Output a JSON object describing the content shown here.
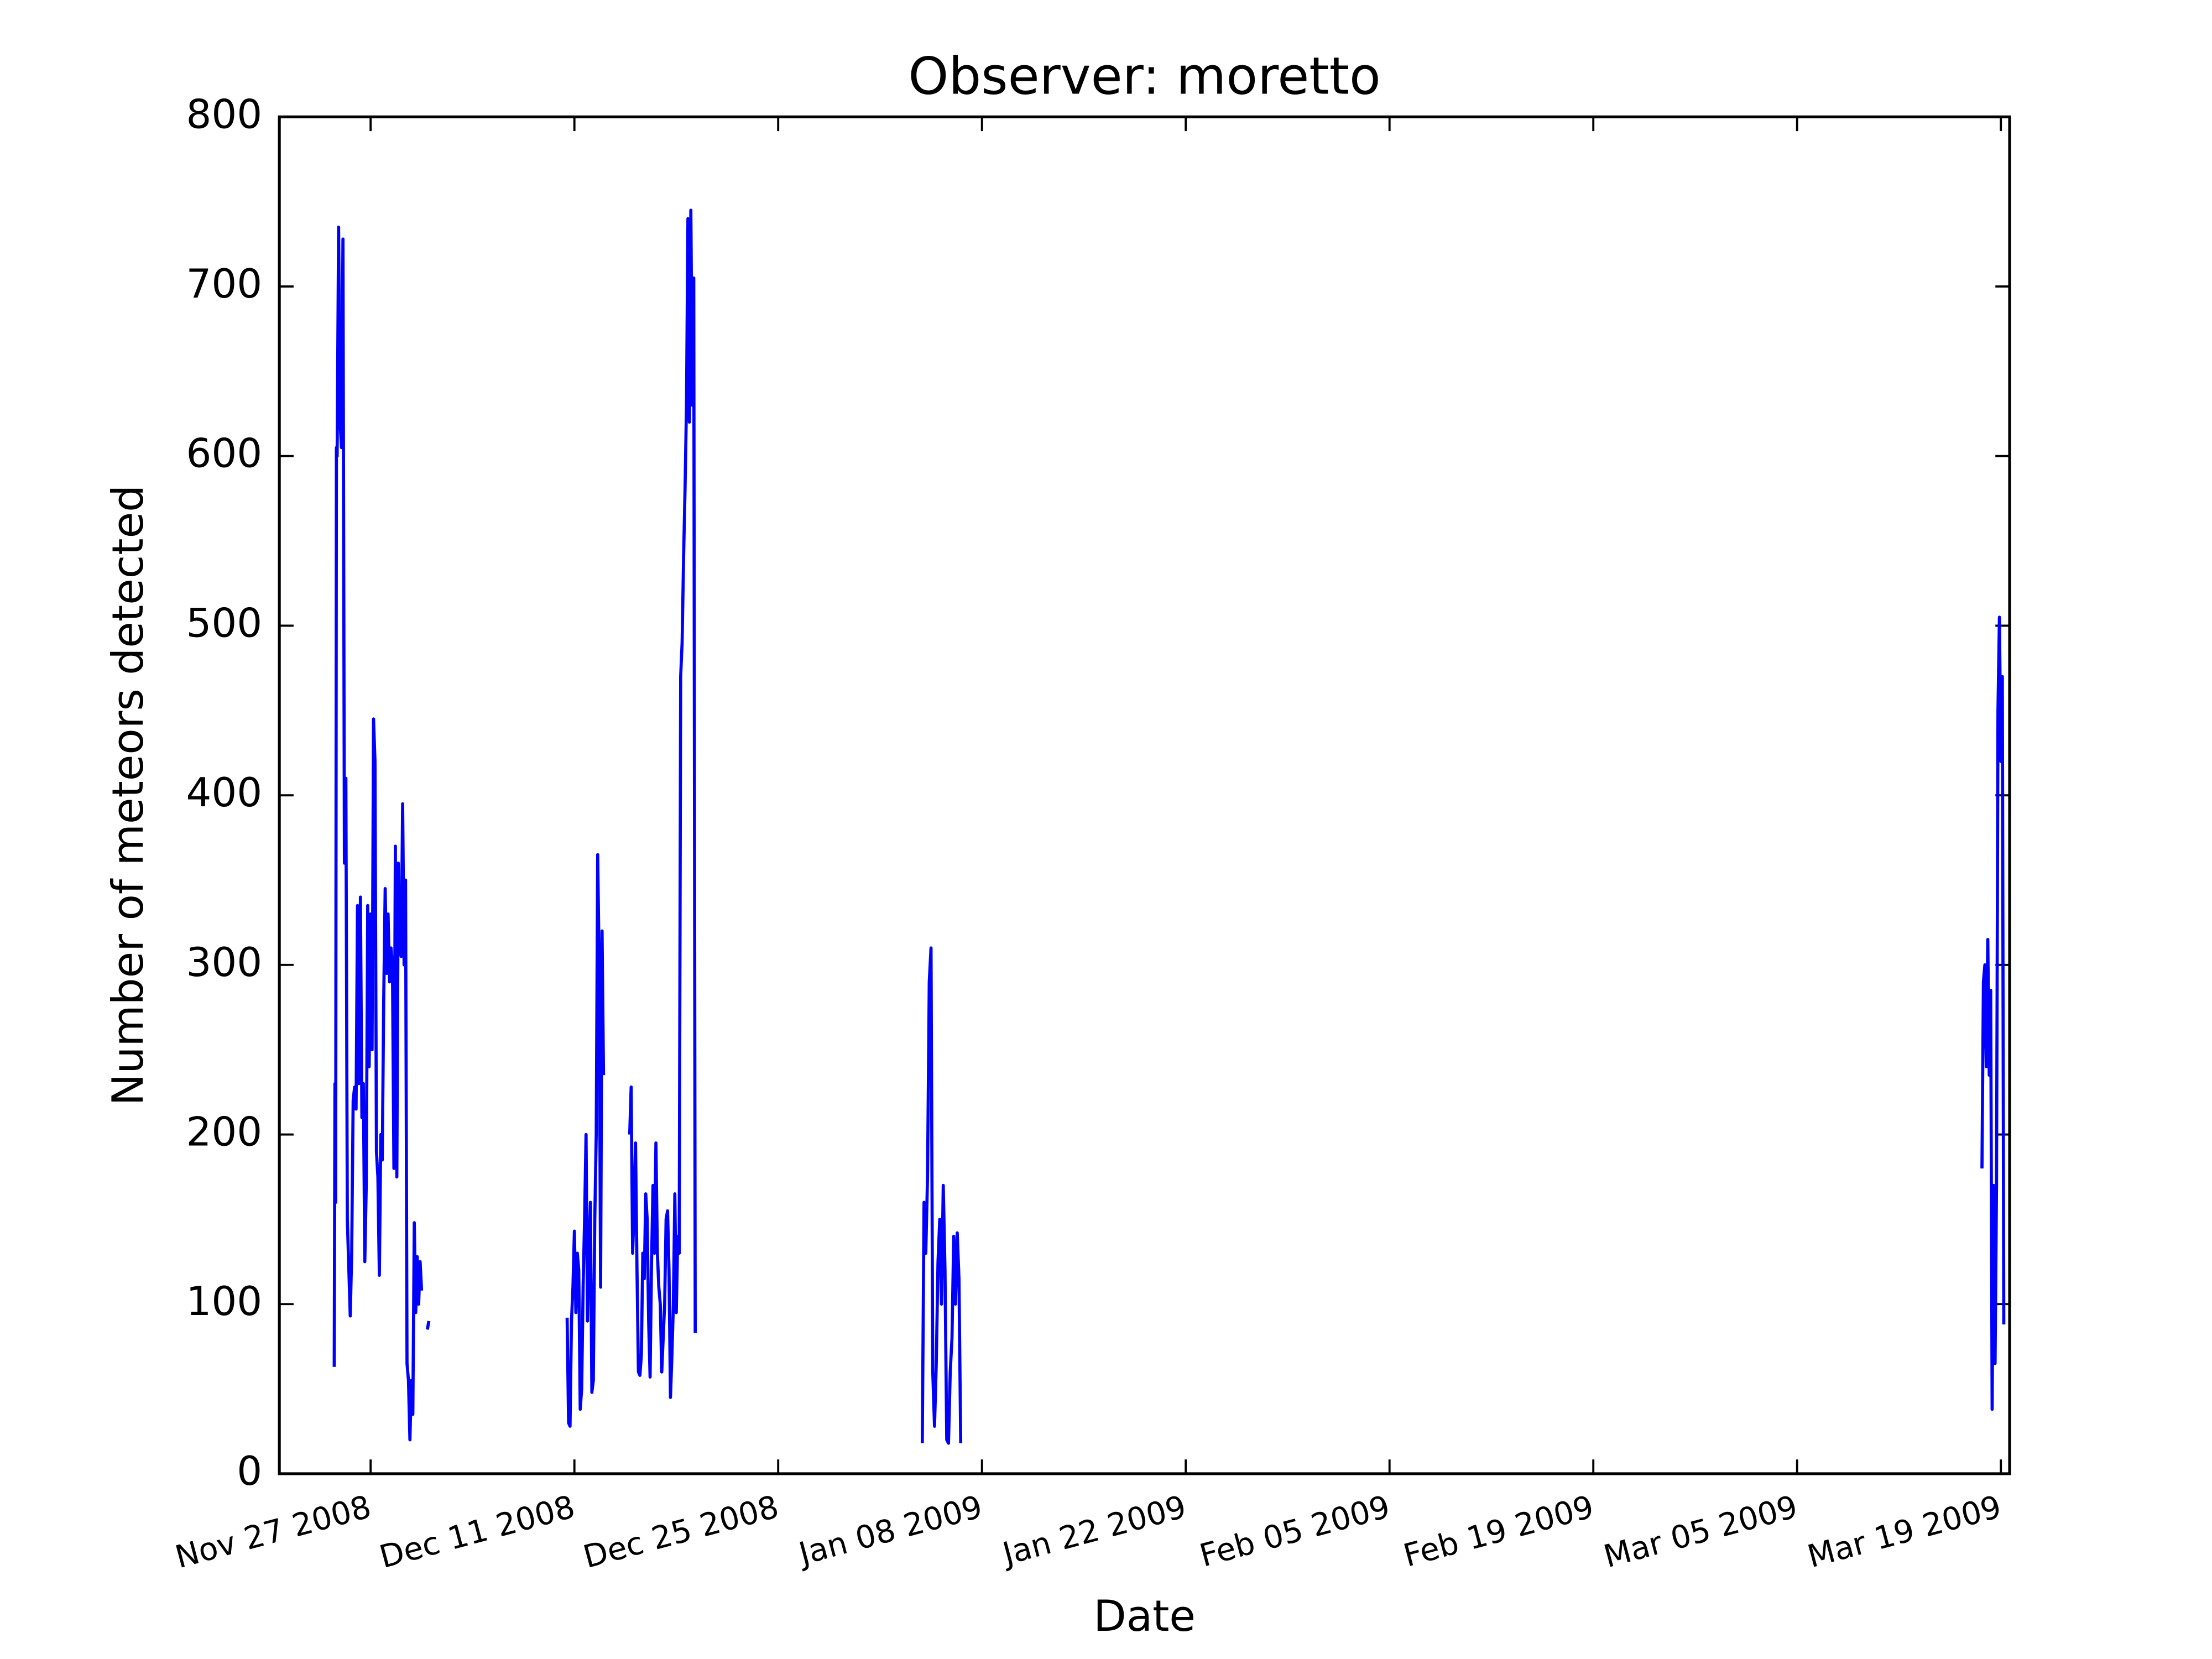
{
  "chart_data": {
    "type": "line",
    "title": "Observer: moretto",
    "xlabel": "Date",
    "ylabel": "Number of meteors detected",
    "xlim": [
      -6.27,
      112.6
    ],
    "ylim": [
      0,
      800
    ],
    "xticks": [
      {
        "value": 0,
        "label": "Nov 27 2008"
      },
      {
        "value": 14,
        "label": "Dec 11 2008"
      },
      {
        "value": 28,
        "label": "Dec 25 2008"
      },
      {
        "value": 42,
        "label": "Jan 08 2009"
      },
      {
        "value": 56,
        "label": "Jan 22 2009"
      },
      {
        "value": 70,
        "label": "Feb 05 2009"
      },
      {
        "value": 84,
        "label": "Feb 19 2009"
      },
      {
        "value": 98,
        "label": "Mar 05 2009"
      },
      {
        "value": 112,
        "label": "Mar 19 2009"
      }
    ],
    "yticks": [
      0,
      100,
      200,
      300,
      400,
      500,
      600,
      700,
      800
    ],
    "series": [
      {
        "name": "moretto",
        "color": "#0000ff",
        "x": [
          -2.5,
          -2.45,
          -2.4,
          -2.35,
          -2.3,
          -2.2,
          -2.1,
          -2.0,
          -1.9,
          -1.8,
          -1.7,
          -1.6,
          -1.4,
          -1.3,
          -1.2,
          -1.1,
          -1.0,
          -0.9,
          -0.8,
          -0.7,
          -0.6,
          -0.5,
          -0.4,
          -0.3,
          -0.2,
          -0.1,
          0,
          0.1,
          0.2,
          0.3,
          0.4,
          0.5,
          0.6,
          0.7,
          0.8,
          0.9,
          1.0,
          1.1,
          1.2,
          1.3,
          1.4,
          1.5,
          1.6,
          1.7,
          1.8,
          1.9,
          2.0,
          2.1,
          2.2,
          2.3,
          2.4,
          2.5,
          2.6,
          2.7,
          2.8,
          2.9,
          3.0,
          3.1,
          3.2,
          3.3,
          3.4,
          3.5,
          3.7,
          3.9,
          4.0,
          4.2,
          13.5,
          13.6,
          13.7,
          13.8,
          13.9,
          14.0,
          14.1,
          14.2,
          14.3,
          14.4,
          14.5,
          14.6,
          14.7,
          14.8,
          14.9,
          15.0,
          15.1,
          15.2,
          15.3,
          15.4,
          15.5,
          15.6,
          15.7,
          15.8,
          15.9,
          16.0,
          16.5,
          17.8,
          17.9,
          18.0,
          18.1,
          18.2,
          18.3,
          18.4,
          18.5,
          18.6,
          18.7,
          18.8,
          18.9,
          19.0,
          19.1,
          19.2,
          19.3,
          19.4,
          19.5,
          19.6,
          19.7,
          19.8,
          19.9,
          20.0,
          20.1,
          20.2,
          20.3,
          20.4,
          20.5,
          20.6,
          20.7,
          20.8,
          20.9,
          21.0,
          21.1,
          21.2,
          21.3,
          21.4,
          21.5,
          21.6,
          21.7,
          21.8,
          21.9,
          22.0,
          22.1,
          22.2,
          22.3,
          30,
          37.9,
          38.02,
          38.14,
          38.26,
          38.38,
          38.5,
          38.62,
          38.74,
          38.86,
          38.98,
          39.1,
          39.22,
          39.34,
          39.46,
          39.58,
          39.7,
          39.82,
          39.94,
          40.06,
          40.18,
          40.3,
          40.42,
          40.54,
          50,
          110.7,
          110.8,
          110.9,
          111.0,
          111.1,
          111.2,
          111.3,
          111.4,
          111.5,
          111.6,
          111.7,
          111.8,
          111.9,
          112.0,
          112.1,
          112.2
        ],
        "values": [
          63,
          230,
          160,
          605,
          600,
          735,
          620,
          605,
          728,
          360,
          410,
          150,
          93,
          130,
          220,
          228,
          215,
          335,
          230,
          340,
          210,
          230,
          125,
          170,
          335,
          240,
          330,
          250,
          445,
          420,
          190,
          175,
          117,
          200,
          185,
          280,
          345,
          295,
          330,
          290,
          310,
          300,
          180,
          370,
          175,
          360,
          310,
          305,
          395,
          300,
          350,
          65,
          55,
          20,
          55,
          35,
          148,
          95,
          128,
          100,
          125,
          108,
          null,
          85,
          90,
          null,
          92,
          30,
          28,
          90,
          110,
          143,
          95,
          130,
          120,
          38,
          50,
          110,
          150,
          200,
          90,
          130,
          160,
          48,
          55,
          150,
          200,
          365,
          300,
          110,
          320,
          235,
          null,
          200,
          228,
          130,
          155,
          195,
          120,
          60,
          58,
          70,
          130,
          115,
          165,
          150,
          90,
          57,
          125,
          170,
          130,
          195,
          130,
          110,
          100,
          60,
          80,
          100,
          150,
          155,
          120,
          45,
          70,
          100,
          165,
          95,
          140,
          130,
          470,
          490,
          540,
          580,
          630,
          740,
          620,
          745,
          630,
          705,
          83,
          null,
          18,
          160,
          130,
          175,
          290,
          310,
          60,
          28,
          65,
          125,
          150,
          100,
          170,
          120,
          20,
          18,
          60,
          80,
          140,
          100,
          142,
          115,
          18,
          null,
          180,
          290,
          300,
          240,
          315,
          235,
          285,
          38,
          170,
          65,
          170,
          450,
          505,
          420,
          470,
          88
        ]
      }
    ]
  }
}
